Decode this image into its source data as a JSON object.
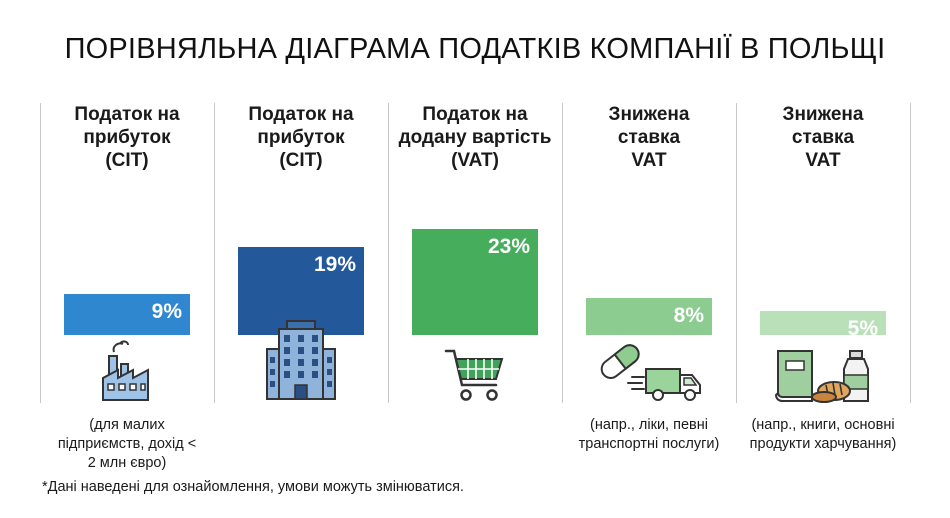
{
  "title": "ПОРІВНЯЛЬНА ДІАГРАМА ПОДАТКІВ КОМПАНІЇ В ПОЛЬЩІ",
  "footnote": "*Дані наведені для ознайомлення, умови можуть змінюватися.",
  "chart_data": {
    "type": "bar",
    "categories": [
      "Податок на прибуток (CIT)",
      "Податок на прибуток (CIT)",
      "Податок на додану вартість (VAT)",
      "Знижена ставка VAT",
      "Знижена ставка VAT"
    ],
    "values": [
      9,
      19,
      23,
      8,
      5
    ],
    "value_labels": [
      "9%",
      "19%",
      "23%",
      "8%",
      "5%"
    ],
    "colors": [
      "#2f87cf",
      "#23589b",
      "#46ad5d",
      "#8ccc91",
      "#b9e0b9"
    ],
    "notes": [
      "(для малих підприємств, дохід < 2 млн євро)",
      "",
      "",
      "(напр., ліки, певні транспортні послуги)",
      "(напр., книги, основні продукти харчування)"
    ],
    "icons": [
      "factory-icon",
      "office-building-icon",
      "shopping-cart-icon",
      "pill-truck-icon",
      "book-bread-bottle-icon"
    ],
    "ylim": [
      0,
      23
    ]
  }
}
